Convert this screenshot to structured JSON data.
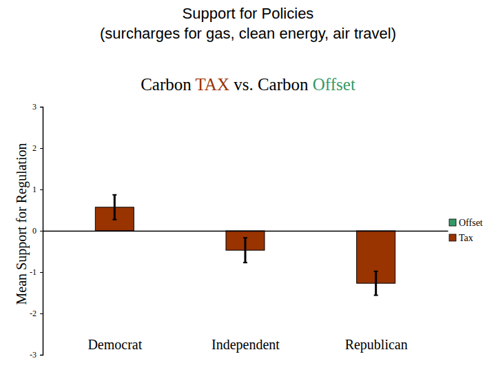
{
  "chart_data": {
    "type": "bar",
    "title": "Support for Policies\n(surcharges for gas, clean energy, air travel)",
    "subtitle": "Carbon TAX vs. Carbon Offset",
    "y_label": "Mean Support for Regulation",
    "categories": [
      "Democrat",
      "Independent",
      "Republican"
    ],
    "series": [
      {
        "name": "Offset",
        "color": "#339966",
        "values": [
          null,
          null,
          null
        ]
      },
      {
        "name": "Tax",
        "color": "#993300",
        "values": [
          0.57,
          -0.47,
          -1.27
        ],
        "errors": [
          0.3,
          0.3,
          0.29
        ]
      }
    ],
    "ylim": [
      -3,
      3
    ],
    "yticks": [
      -3,
      -2,
      -1,
      0,
      1,
      2,
      3
    ],
    "grid": false,
    "legend": "right"
  }
}
